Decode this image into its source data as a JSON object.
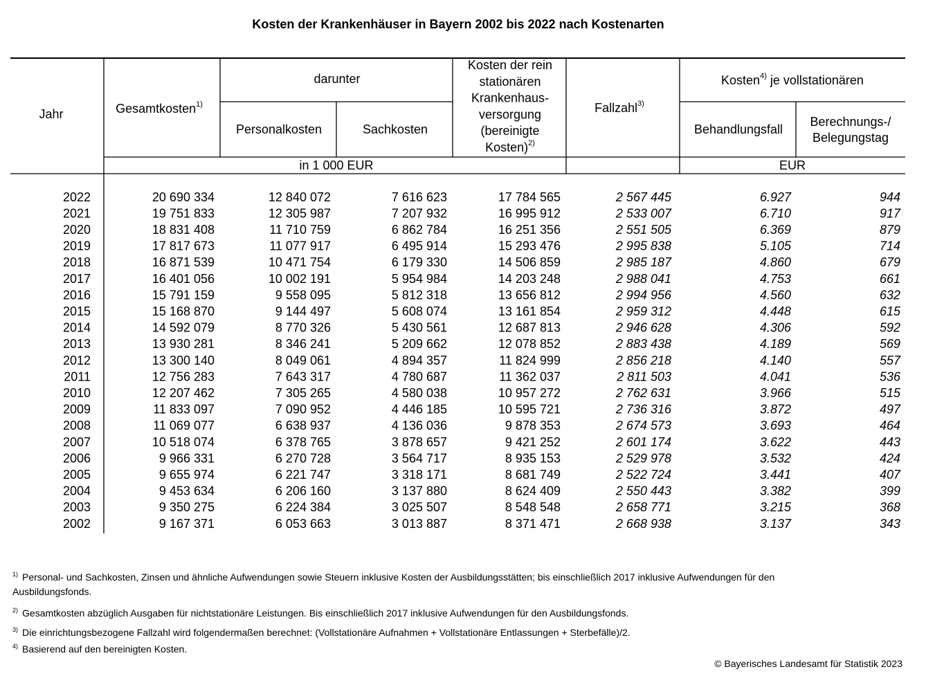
{
  "title": "Kosten der Krankenhäuser in Bayern 2002 bis 2022 nach Kostenarten",
  "header": {
    "jahr": "Jahr",
    "gesamtkosten": {
      "text": "Gesamtkosten",
      "note": "1)"
    },
    "darunter": "darunter",
    "personalkosten": "Personalkosten",
    "sachkosten": "Sachkosten",
    "bereinigte": {
      "lines": [
        "Kosten der rein",
        "stationären",
        "Krankenhaus-",
        "versorgung",
        "(bereinigte",
        "Kosten)"
      ],
      "note": "2)"
    },
    "fallzahl": {
      "text": "Fallzahl",
      "note": "3)"
    },
    "kosten_je": {
      "text": "Kosten",
      "note": "4)",
      "rest": "je vollstationären"
    },
    "behandlungsfall": "Behandlungsfall",
    "belegungstag": [
      "Berechnungs-/",
      "Belegungstag"
    ],
    "unit_1000": "in 1 000 EUR",
    "unit_eur": "EUR"
  },
  "table": {
    "rows": [
      [
        "2022",
        "20 690 334",
        "12 840 072",
        "7 616 623",
        "17 784 565",
        "2 567 445",
        "6.927",
        "944"
      ],
      [
        "2021",
        "19 751 833",
        "12 305 987",
        "7 207 932",
        "16 995 912",
        "2 533 007",
        "6.710",
        "917"
      ],
      [
        "2020",
        "18 831 408",
        "11 710 759",
        "6 862 784",
        "16 251 356",
        "2 551 505",
        "6.369",
        "879"
      ],
      [
        "2019",
        "17 817 673",
        "11 077 917",
        "6 495 914",
        "15 293 476",
        "2 995 838",
        "5.105",
        "714"
      ],
      [
        "2018",
        "16 871 539",
        "10 471 754",
        "6 179 330",
        "14 506 859",
        "2 985 187",
        "4.860",
        "679"
      ],
      [
        "2017",
        "16 401 056",
        "10 002 191",
        "5 954 984",
        "14 203 248",
        "2 988 041",
        "4.753",
        "661"
      ],
      [
        "2016",
        "15 791 159",
        "9 558 095",
        "5 812 318",
        "13 656 812",
        "2 994 956",
        "4.560",
        "632"
      ],
      [
        "2015",
        "15 168 870",
        "9 144 497",
        "5 608 074",
        "13 161 854",
        "2 959 312",
        "4.448",
        "615"
      ],
      [
        "2014",
        "14 592 079",
        "8 770 326",
        "5 430 561",
        "12 687 813",
        "2 946 628",
        "4.306",
        "592"
      ],
      [
        "2013",
        "13 930 281",
        "8 346 241",
        "5 209 662",
        "12 078 852",
        "2 883 438",
        "4.189",
        "569"
      ],
      [
        "2012",
        "13 300 140",
        "8 049 061",
        "4 894 357",
        "11 824 999",
        "2 856 218",
        "4.140",
        "557"
      ],
      [
        "2011",
        "12 756 283",
        "7 643 317",
        "4 780 687",
        "11 362 037",
        "2 811 503",
        "4.041",
        "536"
      ],
      [
        "2010",
        "12 207 462",
        "7 305 265",
        "4 580 038",
        "10 957 272",
        "2 762 631",
        "3.966",
        "515"
      ],
      [
        "2009",
        "11 833 097",
        "7 090 952",
        "4 446 185",
        "10 595 721",
        "2 736 316",
        "3.872",
        "497"
      ],
      [
        "2008",
        "11 069 077",
        "6 638 937",
        "4 136 036",
        "9 878 353",
        "2 674 573",
        "3.693",
        "464"
      ],
      [
        "2007",
        "10 518 074",
        "6 378 765",
        "3 878 657",
        "9 421 252",
        "2 601 174",
        "3.622",
        "443"
      ],
      [
        "2006",
        "9 966 331",
        "6 270 728",
        "3 564 717",
        "8 935 153",
        "2 529 978",
        "3.532",
        "424"
      ],
      [
        "2005",
        "9 655 974",
        "6 221 747",
        "3 318 171",
        "8 681 749",
        "2 522 724",
        "3.441",
        "407"
      ],
      [
        "2004",
        "9 453 634",
        "6 206 160",
        "3 137 880",
        "8 624 409",
        "2 550 443",
        "3.382",
        "399"
      ],
      [
        "2003",
        "9 350 275",
        "6 224 384",
        "3 025 507",
        "8 548 548",
        "2 658 771",
        "3.215",
        "368"
      ],
      [
        "2002",
        "9 167 371",
        "6 053 663",
        "3 013 887",
        "8 371 471",
        "2 668 938",
        "3.137",
        "343"
      ]
    ]
  },
  "footnotes": [
    {
      "mark": "1)",
      "text": "Personal- und Sachkosten, Zinsen und ähnliche Aufwendungen sowie Steuern inklusive Kosten der Ausbildungsstätten; bis einschließlich 2017 inklusive Aufwendungen für den Ausbildungsfonds."
    },
    {
      "mark": "2)",
      "text": "Gesamtkosten abzüglich Ausgaben für nichtstationäre Leistungen. Bis einschließlich 2017 inklusive Aufwendungen für den Ausbildungsfonds."
    },
    {
      "mark": "3)",
      "text": "Die einrichtungsbezogene Fallzahl wird folgendermaßen berechnet: (Vollstationäre Aufnahmen + Vollstationäre Entlassungen + Sterbefälle)/2."
    },
    {
      "mark": "4)",
      "text": "Basierend auf den bereinigten Kosten."
    }
  ],
  "copyright": "© Bayerisches Landesamt für Statistik 2023"
}
